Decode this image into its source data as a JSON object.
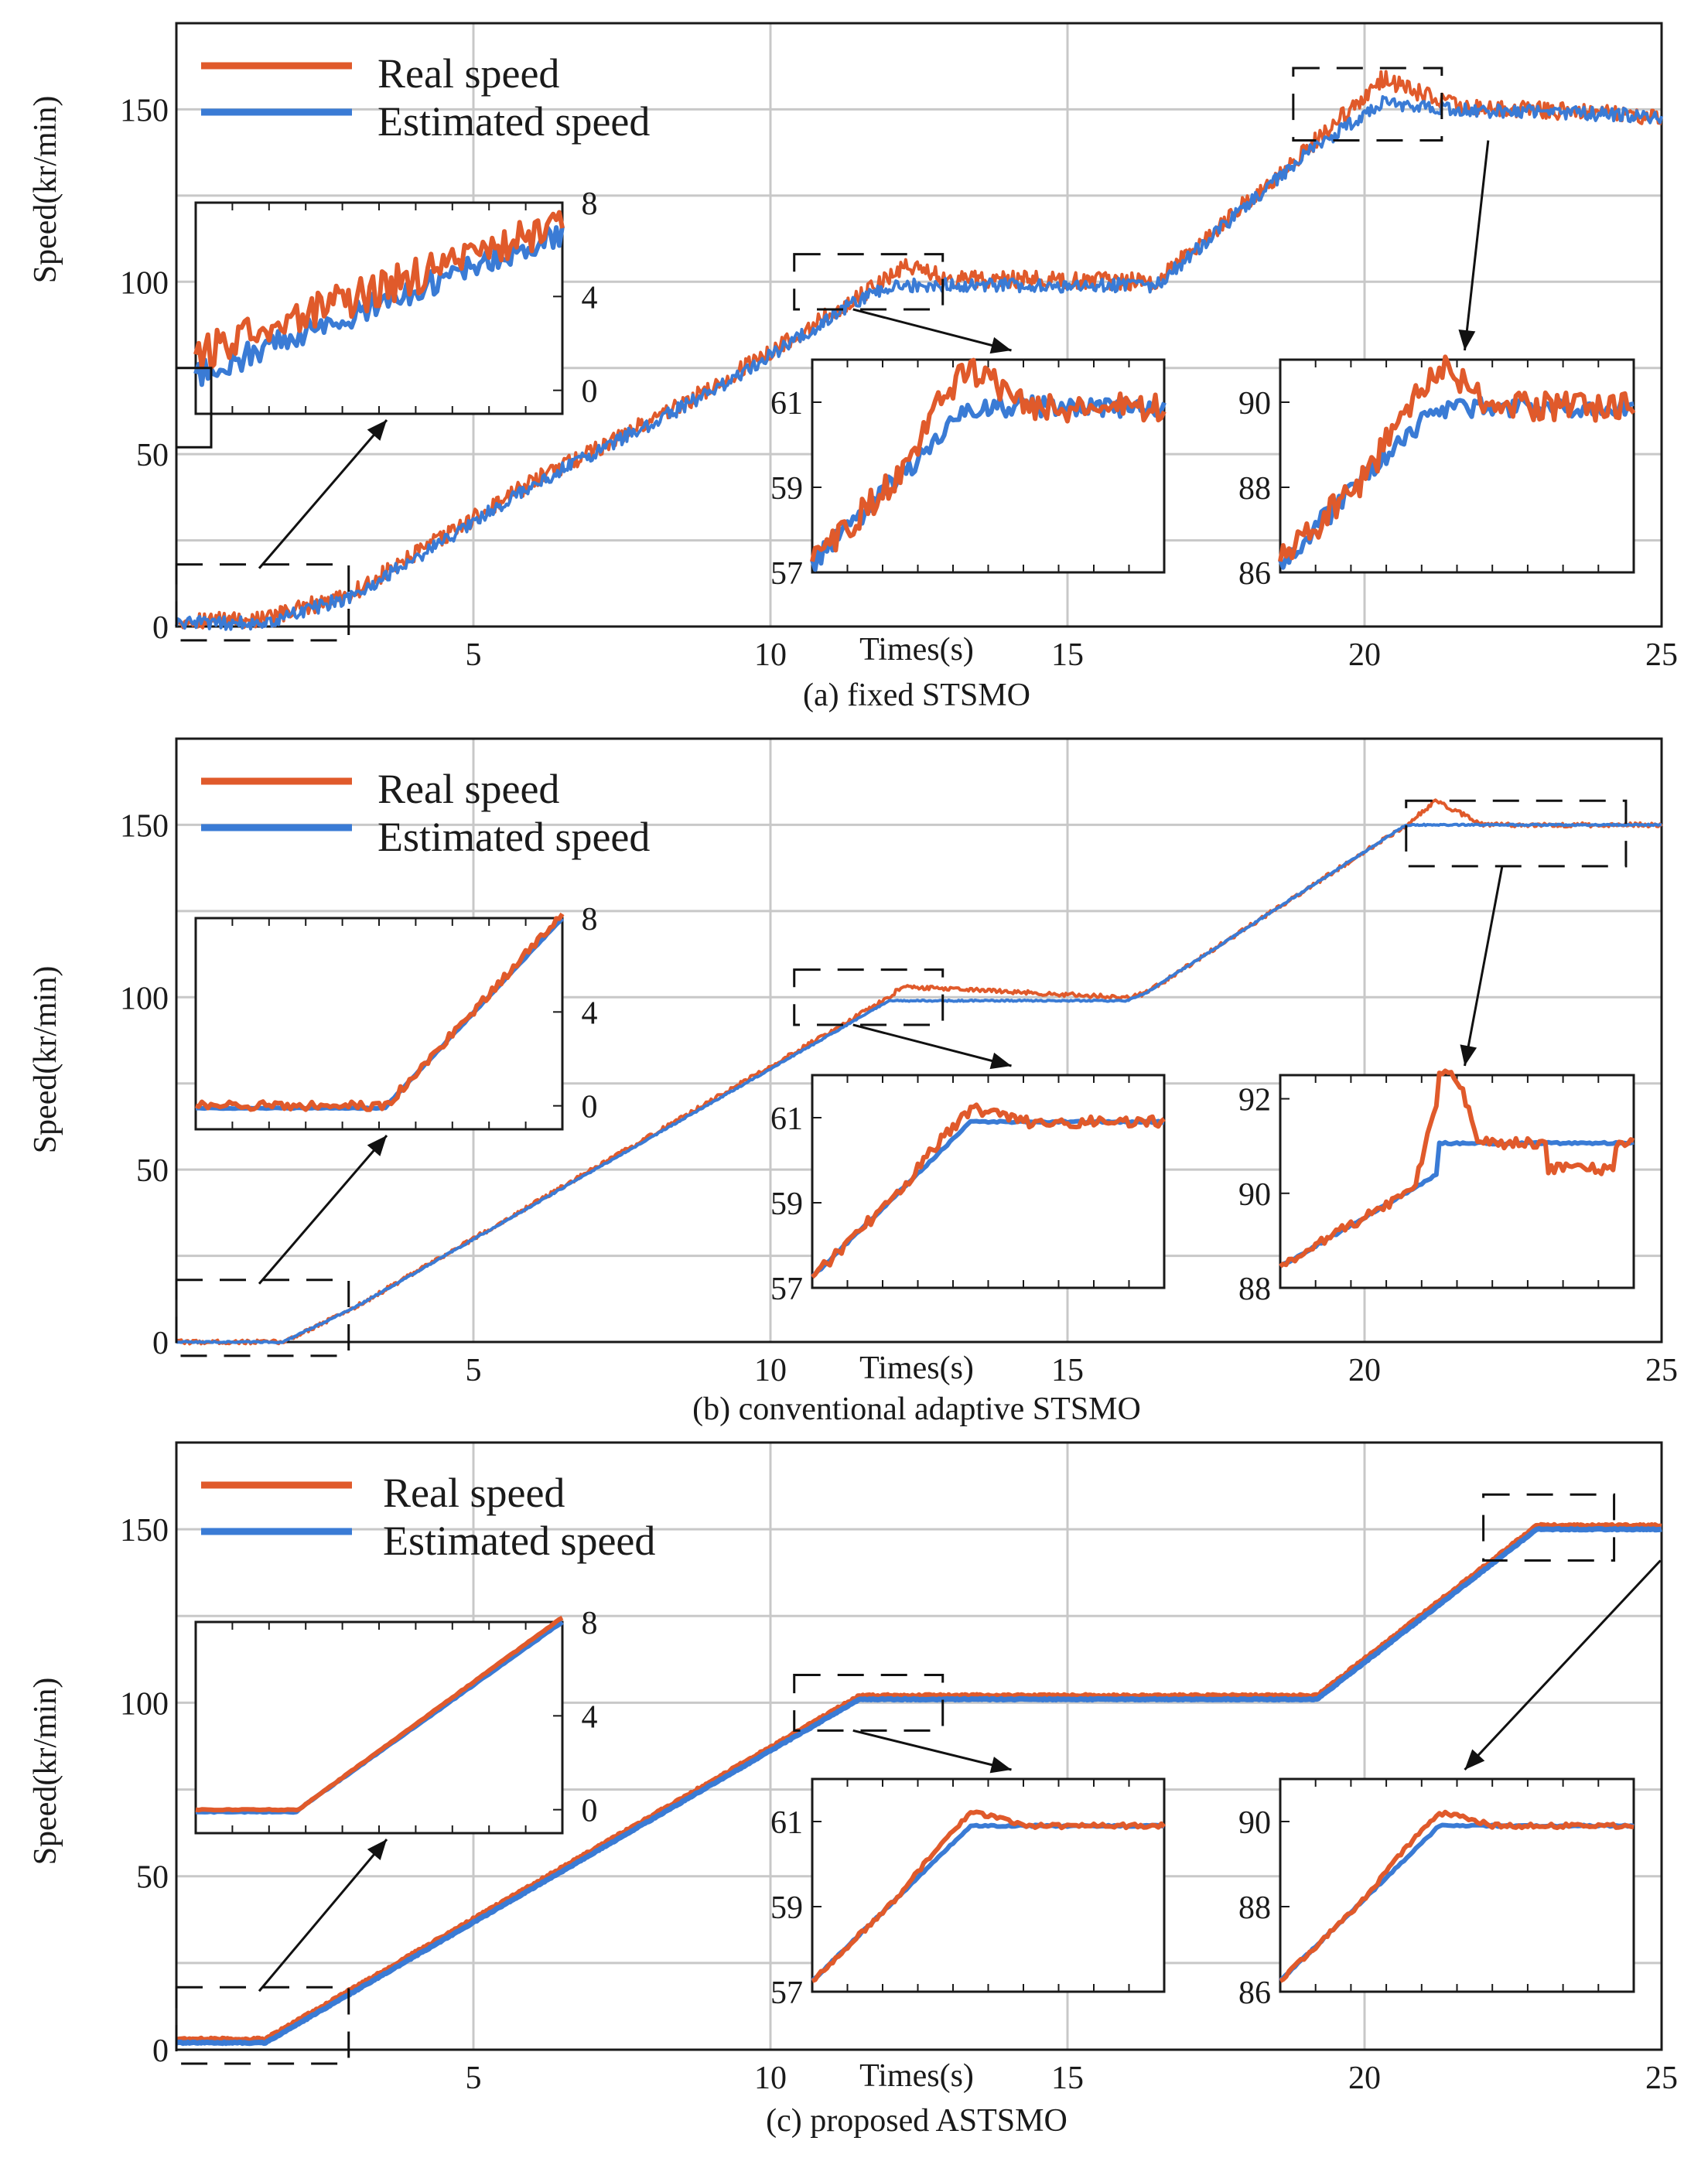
{
  "colors": {
    "real": "#e05a2b",
    "estimated": "#3a7bd5",
    "grid": "#c8c8c8",
    "axis": "#1a1a1a"
  },
  "chart_data": [
    {
      "id": "a",
      "type": "line",
      "caption": "(a) fixed STSMO",
      "xlabel": "Times(s)",
      "ylabel": "Speed(kr/min)",
      "xlim": [
        0,
        25
      ],
      "ylim": [
        0,
        175
      ],
      "xticks": [
        5,
        10,
        15,
        20,
        25
      ],
      "yticks": [
        0,
        50,
        100,
        150
      ],
      "legend": [
        "Real speed",
        "Estimated speed"
      ],
      "series": [
        {
          "name": "Real speed",
          "x": [
            0,
            1.5,
            3,
            6,
            9,
            11.7,
            12.3,
            13,
            16.5,
            19,
            20.3,
            21.5,
            25
          ],
          "y": [
            2,
            2,
            10,
            42,
            69,
            98,
            105,
            101,
            100,
            138,
            159,
            151,
            148
          ],
          "noise": 2.5
        },
        {
          "name": "Estimated speed",
          "x": [
            0,
            1.5,
            3,
            6,
            9,
            11.7,
            12.3,
            13,
            16.5,
            19,
            20.3,
            21.5,
            25
          ],
          "y": [
            1,
            1,
            9,
            41,
            68,
            97,
            99,
            99,
            99,
            137,
            152,
            150,
            148
          ],
          "noise": 2
        }
      ],
      "insets": [
        {
          "position": "left",
          "yticks": [
            "8",
            "4",
            "0"
          ],
          "ylim": [
            -1,
            8
          ],
          "shape": "noisy-ramp"
        },
        {
          "position": "middle",
          "yticks": [
            "61",
            "59",
            "57"
          ],
          "ylim": [
            57,
            62
          ],
          "shape": "noisy-step"
        },
        {
          "position": "right",
          "yticks": [
            "90",
            "88",
            "86"
          ],
          "ylim": [
            86,
            91
          ],
          "shape": "noisy-step"
        }
      ]
    },
    {
      "id": "b",
      "type": "line",
      "caption": "(b) conventional adaptive STSMO",
      "xlabel": "Times(s)",
      "ylabel": "Speed(kr/min)",
      "xlim": [
        0,
        25
      ],
      "ylim": [
        0,
        175
      ],
      "xticks": [
        5,
        10,
        15,
        20,
        25
      ],
      "yticks": [
        0,
        50,
        100,
        150
      ],
      "legend": [
        "Real speed",
        "Estimated speed"
      ],
      "series": [
        {
          "name": "Real speed",
          "x": [
            0,
            1.8,
            3,
            12,
            12.2,
            16,
            16.3,
            20.7,
            21.2,
            22,
            25
          ],
          "y": [
            0,
            0,
            10,
            100,
            103,
            100,
            101,
            150,
            157,
            150,
            150
          ],
          "noise": 0.6
        },
        {
          "name": "Estimated speed",
          "x": [
            0,
            1.8,
            3,
            12,
            16,
            16.3,
            20.7,
            25
          ],
          "y": [
            0,
            0,
            10,
            99,
            99,
            101,
            150,
            150
          ],
          "noise": 0.2
        }
      ],
      "insets": [
        {
          "position": "left",
          "yticks": [
            "8",
            "4",
            "0"
          ],
          "ylim": [
            -1,
            8
          ],
          "shape": "smooth-ramp"
        },
        {
          "position": "middle",
          "yticks": [
            "61",
            "59",
            "57"
          ],
          "ylim": [
            57,
            62
          ],
          "shape": "smooth-step"
        },
        {
          "position": "right",
          "yticks": [
            "92",
            "90",
            "88"
          ],
          "ylim": [
            88,
            92.5
          ],
          "shape": "spike-step"
        }
      ]
    },
    {
      "id": "c",
      "type": "line",
      "caption": "(c) proposed ASTSMO",
      "xlabel": "Times(s)",
      "ylabel": "Speed(kr/min)",
      "xlim": [
        0,
        25
      ],
      "ylim": [
        0,
        175
      ],
      "xticks": [
        5,
        10,
        15,
        20,
        25
      ],
      "yticks": [
        0,
        50,
        100,
        150
      ],
      "legend": [
        "Real speed",
        "Estimated speed"
      ],
      "series": [
        {
          "name": "Real speed",
          "x": [
            0,
            1.5,
            11.5,
            19.2,
            22.9,
            25
          ],
          "y": [
            3,
            3,
            102,
            102,
            151,
            151
          ],
          "noise": 0.3
        },
        {
          "name": "Estimated speed",
          "x": [
            0,
            1.5,
            11.5,
            19.2,
            22.9,
            25
          ],
          "y": [
            2,
            2,
            101,
            101,
            150,
            150
          ],
          "noise": 0.15
        }
      ],
      "insets": [
        {
          "position": "left",
          "yticks": [
            "8",
            "4",
            "0"
          ],
          "ylim": [
            -1,
            8
          ],
          "shape": "clean-ramp"
        },
        {
          "position": "middle",
          "yticks": [
            "61",
            "59",
            "57"
          ],
          "ylim": [
            57,
            62
          ],
          "shape": "clean-step"
        },
        {
          "position": "right",
          "yticks": [
            "90",
            "88",
            "86"
          ],
          "ylim": [
            86,
            91
          ],
          "shape": "clean-step"
        }
      ]
    }
  ]
}
